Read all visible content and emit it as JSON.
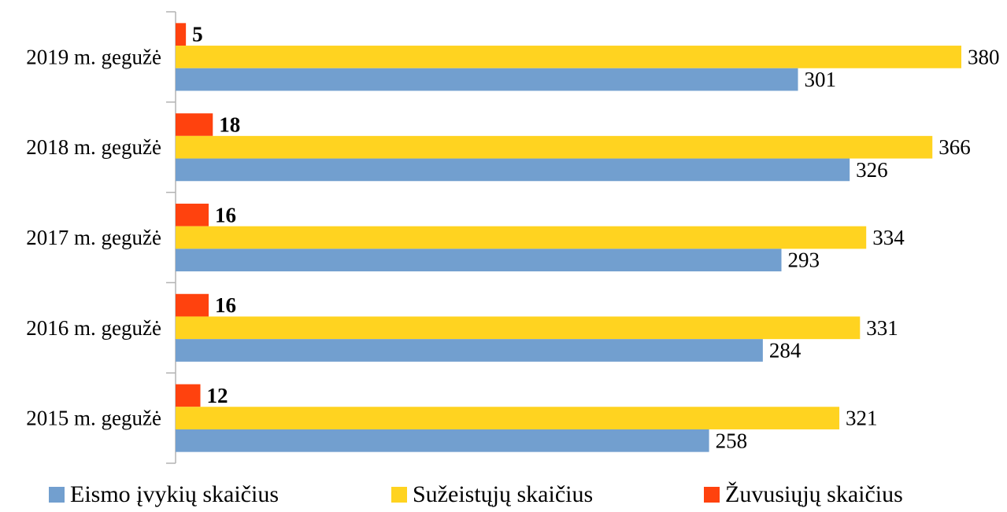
{
  "chart_data": {
    "type": "bar",
    "orientation": "horizontal",
    "categories": [
      "2019 m. gegužė",
      "2018 m. gegužė",
      "2017 m. gegužė",
      "2016 m. gegužė",
      "2015 m. gegužė"
    ],
    "series": [
      {
        "name": "Eismo įvykių skaičius",
        "values": [
          301,
          326,
          293,
          284,
          258
        ],
        "color": "#729fcf"
      },
      {
        "name": "Sužeistųjų skaičius",
        "values": [
          380,
          366,
          334,
          331,
          321
        ],
        "color": "#ffd320"
      },
      {
        "name": "Žuvusiųjų skaičius",
        "values": [
          5,
          18,
          16,
          16,
          12
        ],
        "color": "#ff420e"
      }
    ],
    "xlim": [
      0,
      380
    ],
    "legend": "bottom",
    "grid": false,
    "data_labels": true
  }
}
